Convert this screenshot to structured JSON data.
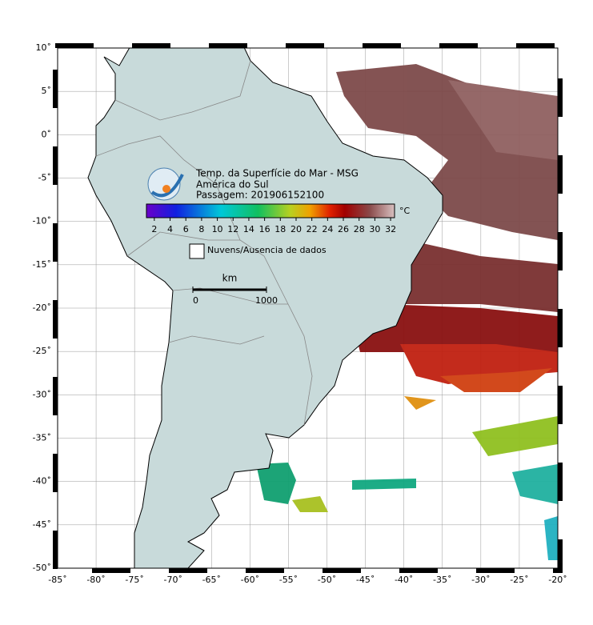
{
  "title_lines": [
    "Temp. da Superfície do Mar - MSG",
    "América do Sul",
    "Passagem: 201906152100"
  ],
  "colorbar": {
    "unit": "°C",
    "range": [
      1,
      32.5
    ],
    "ticks": [
      2,
      4,
      6,
      8,
      10,
      12,
      14,
      16,
      18,
      20,
      22,
      24,
      26,
      28,
      30,
      32
    ]
  },
  "legend": "Nuvens/Ausencia de dados",
  "scale_bar": {
    "unit": "km",
    "ticks": [
      0,
      1000
    ]
  },
  "map": {
    "xlim": [
      -85,
      -20
    ],
    "ylim": [
      -50,
      10
    ],
    "xticks": [
      {
        "value": -85,
        "label": "-85˚"
      },
      {
        "value": -80,
        "label": "-80˚"
      },
      {
        "value": -75,
        "label": "-75˚"
      },
      {
        "value": -70,
        "label": "-70˚"
      },
      {
        "value": -65,
        "label": "-65˚"
      },
      {
        "value": -60,
        "label": "-60˚"
      },
      {
        "value": -55,
        "label": "-55˚"
      },
      {
        "value": -50,
        "label": "-50˚"
      },
      {
        "value": -45,
        "label": "-45˚"
      },
      {
        "value": -40,
        "label": "-40˚"
      },
      {
        "value": -35,
        "label": "-35˚"
      },
      {
        "value": -30,
        "label": "-30˚"
      },
      {
        "value": -25,
        "label": "-25˚"
      },
      {
        "value": -20,
        "label": "-20˚"
      }
    ],
    "yticks": [
      {
        "value": 10,
        "label": "10˚"
      },
      {
        "value": 5,
        "label": "5˚"
      },
      {
        "value": 0,
        "label": "0˚"
      },
      {
        "value": -5,
        "label": "-5˚"
      },
      {
        "value": -10,
        "label": "-10˚"
      },
      {
        "value": -15,
        "label": "-15˚"
      },
      {
        "value": -20,
        "label": "-20˚"
      },
      {
        "value": -25,
        "label": "-25˚"
      },
      {
        "value": -30,
        "label": "-30˚"
      },
      {
        "value": -35,
        "label": "-35˚"
      },
      {
        "value": -40,
        "label": "-40˚"
      },
      {
        "value": -45,
        "label": "-45˚"
      },
      {
        "value": -50,
        "label": "-50˚"
      }
    ]
  }
}
